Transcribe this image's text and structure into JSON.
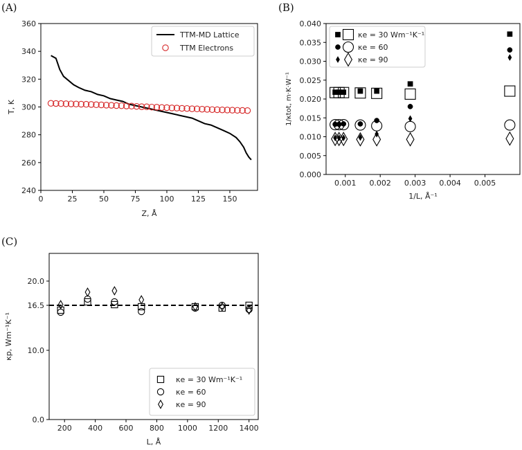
{
  "chart_data": [
    {
      "panel": "(A)",
      "type": "line",
      "xlabel": "Z,  Å",
      "ylabel": "T, K",
      "xlim": [
        0,
        172
      ],
      "ylim": [
        240,
        360
      ],
      "xticks": [
        0,
        25,
        50,
        75,
        100,
        125,
        150
      ],
      "yticks": [
        240,
        260,
        280,
        300,
        320,
        340,
        360
      ],
      "legend_position": "top-right",
      "series": [
        {
          "name": "TTM-MD Lattice",
          "style": "line",
          "color": "#000000",
          "x": [
            8,
            12,
            15,
            18,
            22,
            26,
            30,
            35,
            40,
            45,
            50,
            55,
            60,
            65,
            70,
            75,
            80,
            85,
            90,
            95,
            100,
            105,
            110,
            115,
            120,
            125,
            130,
            135,
            140,
            145,
            150,
            155,
            158,
            161,
            163,
            165,
            167
          ],
          "y": [
            337,
            335,
            327,
            322,
            319,
            316,
            314,
            312,
            311,
            309,
            308,
            306,
            305,
            304,
            302,
            301,
            300,
            299,
            298,
            297,
            296,
            295,
            294,
            293,
            292,
            290,
            288,
            287,
            285,
            283,
            281,
            278,
            275,
            271,
            267,
            264,
            262
          ]
        },
        {
          "name": "TTM Electrons",
          "style": "markers",
          "marker": "open-circle",
          "color": "#d62728",
          "x": [
            8,
            12,
            16,
            20,
            24,
            28,
            32,
            36,
            40,
            44,
            48,
            52,
            56,
            60,
            64,
            68,
            72,
            76,
            80,
            84,
            88,
            92,
            96,
            100,
            104,
            108,
            112,
            116,
            120,
            124,
            128,
            132,
            136,
            140,
            144,
            148,
            152,
            156,
            160,
            164
          ],
          "y": [
            302.6,
            302.5,
            302.4,
            302.3,
            302.2,
            302.1,
            302.0,
            301.9,
            301.8,
            301.6,
            301.5,
            301.3,
            301.2,
            301.0,
            300.9,
            300.7,
            300.6,
            300.4,
            300.2,
            300.1,
            299.9,
            299.8,
            299.6,
            299.5,
            299.3,
            299.2,
            299.0,
            298.9,
            298.7,
            298.6,
            298.4,
            298.3,
            298.1,
            298.0,
            297.9,
            297.8,
            297.7,
            297.6,
            297.5,
            297.4
          ]
        }
      ]
    },
    {
      "panel": "(B)",
      "type": "scatter",
      "xlabel": "1/L, Å⁻¹",
      "ylabel": "1/κtot, m·K·W⁻¹",
      "xlim": [
        0.00045,
        0.006
      ],
      "ylim": [
        0,
        0.04
      ],
      "xticks": [
        0.001,
        0.002,
        0.003,
        0.004,
        0.005
      ],
      "xtick_labels": [
        "0.001",
        "0.002",
        "0.003",
        "0.004",
        "0.005"
      ],
      "yticks": [
        0,
        0.005,
        0.01,
        0.015,
        0.02,
        0.025,
        0.03,
        0.035,
        0.04
      ],
      "ytick_labels": [
        "0.000",
        "0.005",
        "0.010",
        "0.015",
        "0.020",
        "0.025",
        "0.030",
        "0.035",
        "0.040"
      ],
      "legend_position": "top-left",
      "legend_labels": [
        "κe = 30 Wm⁻¹K⁻¹",
        "κe = 60",
        "κe = 90"
      ],
      "series": [
        {
          "name": "κe = 30 (small filled)",
          "marker": "filled-square",
          "size": "small",
          "x": [
            0.00071,
            0.00082,
            0.00095,
            0.00143,
            0.0019,
            0.00286,
            0.00571
          ],
          "y": [
            0.0218,
            0.0218,
            0.0218,
            0.0221,
            0.0221,
            0.024,
            0.0372
          ]
        },
        {
          "name": "κe = 30 (large open)",
          "marker": "open-square",
          "size": "large",
          "x": [
            0.00071,
            0.00082,
            0.00095,
            0.00143,
            0.0019,
            0.00286,
            0.00571
          ],
          "y": [
            0.0217,
            0.0217,
            0.0217,
            0.0216,
            0.0215,
            0.0213,
            0.0221
          ]
        },
        {
          "name": "κe = 60 (small filled)",
          "marker": "filled-circle",
          "size": "small",
          "x": [
            0.00071,
            0.00082,
            0.00095,
            0.00143,
            0.0019,
            0.00286,
            0.00571
          ],
          "y": [
            0.0133,
            0.0133,
            0.0134,
            0.0134,
            0.0143,
            0.018,
            0.033
          ]
        },
        {
          "name": "κe = 60 (large open)",
          "marker": "open-circle",
          "size": "large",
          "x": [
            0.00071,
            0.00082,
            0.00095,
            0.00143,
            0.0019,
            0.00286,
            0.00571
          ],
          "y": [
            0.0132,
            0.0132,
            0.0132,
            0.0131,
            0.0129,
            0.0127,
            0.0131
          ]
        },
        {
          "name": "κe = 90 (small filled)",
          "marker": "filled-diamond",
          "size": "small",
          "x": [
            0.00071,
            0.00082,
            0.00095,
            0.00143,
            0.0019,
            0.00286,
            0.00571
          ],
          "y": [
            0.0097,
            0.0097,
            0.0097,
            0.0098,
            0.0107,
            0.0148,
            0.031
          ]
        },
        {
          "name": "κe = 90 (large open)",
          "marker": "open-diamond",
          "size": "large",
          "x": [
            0.00071,
            0.00082,
            0.00095,
            0.00143,
            0.0019,
            0.00286,
            0.00571
          ],
          "y": [
            0.0094,
            0.0094,
            0.0094,
            0.0093,
            0.0093,
            0.0093,
            0.0095
          ]
        }
      ]
    },
    {
      "panel": "(C)",
      "type": "scatter",
      "xlabel": "L, Å",
      "ylabel": "κp, Wm⁻¹K⁻¹",
      "xlim": [
        100,
        1460
      ],
      "ylim": [
        0,
        24
      ],
      "xticks": [
        200,
        400,
        600,
        800,
        1000,
        1200,
        1400
      ],
      "yticks": [
        0,
        10,
        16.5,
        20
      ],
      "ytick_labels": [
        "0.0",
        "10.0",
        "16.5",
        "20.0"
      ],
      "reference_line": {
        "y": 16.5,
        "style": "dashed"
      },
      "legend_position": "bottom-right",
      "legend_labels": [
        "κe = 30 Wm⁻¹K⁻¹",
        "κe = 60",
        "κe = 90"
      ],
      "series": [
        {
          "name": "κe = 30 Wm⁻¹K⁻¹",
          "marker": "open-square",
          "x": [
            175,
            350,
            525,
            700,
            1050,
            1225,
            1400
          ],
          "y": [
            15.8,
            17.0,
            16.6,
            16.3,
            16.3,
            16.1,
            16.5
          ]
        },
        {
          "name": "κe = 60",
          "marker": "open-circle",
          "x": [
            175,
            350,
            525,
            700,
            1050,
            1225,
            1400
          ],
          "y": [
            15.5,
            17.4,
            17.0,
            15.6,
            16.1,
            16.5,
            15.9
          ]
        },
        {
          "name": "κe = 90",
          "marker": "open-diamond",
          "x": [
            175,
            350,
            525,
            700,
            1050,
            1225,
            1400
          ],
          "y": [
            16.6,
            18.4,
            18.6,
            17.3,
            16.3,
            16.3,
            15.8
          ]
        }
      ]
    }
  ]
}
